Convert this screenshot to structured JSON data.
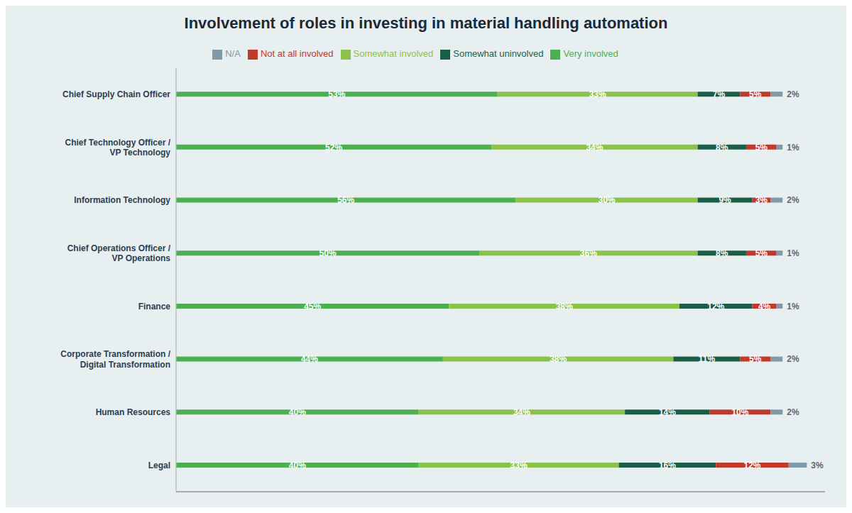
{
  "chart_data": {
    "type": "bar",
    "orientation": "horizontal",
    "stacked": true,
    "data_labels": true,
    "title": "Involvement of roles in investing in material handling automation",
    "categories": [
      "Chief Supply Chain Officer",
      "Chief Technology Officer /\nVP Technology",
      "Information Technology",
      "Chief Operations Officer /\nVP Operations",
      "Finance",
      "Corporate Transformation /\nDigital Transformation",
      "Human Resources",
      "Legal"
    ],
    "series": [
      {
        "name": "Very involved",
        "color": "#4caf50",
        "values": [
          53,
          52,
          56,
          50,
          45,
          44,
          40,
          40
        ],
        "value_labels": [
          "53%",
          "52%",
          "56%",
          "50%",
          "45%",
          "44%",
          "40%",
          "40%"
        ]
      },
      {
        "name": "Somewhat involved",
        "color": "#8bc34a",
        "values": [
          33,
          34,
          30,
          36,
          38,
          38,
          34,
          33
        ],
        "value_labels": [
          "33%",
          "34%",
          "30%",
          "36%",
          "38%",
          "38%",
          "34%",
          "33%"
        ]
      },
      {
        "name": "Somewhat uninvolved",
        "color": "#1b5e48",
        "values": [
          7,
          8,
          9,
          8,
          12,
          11,
          14,
          16
        ],
        "value_labels": [
          "7%",
          "8%",
          "9%",
          "8%",
          "12%",
          "11%",
          "14%",
          "16%"
        ]
      },
      {
        "name": "Not at all involved",
        "color": "#c0392b",
        "values": [
          5,
          5,
          3,
          5,
          4,
          5,
          10,
          12
        ],
        "value_labels": [
          "5%",
          "5%",
          "3%",
          "5%",
          "4%",
          "5%",
          "10%",
          "12%"
        ]
      },
      {
        "name": "N/A",
        "color": "#7f9aa8",
        "values": [
          2,
          1,
          2,
          1,
          1,
          2,
          2,
          3
        ],
        "value_labels": [
          "2%",
          "1%",
          "2%",
          "1%",
          "1%",
          "2%",
          "2%",
          "3%"
        ]
      }
    ],
    "xlim": [
      0,
      107
    ],
    "xticks": [],
    "grid": false,
    "legend": "top",
    "tick_labels": "y"
  }
}
